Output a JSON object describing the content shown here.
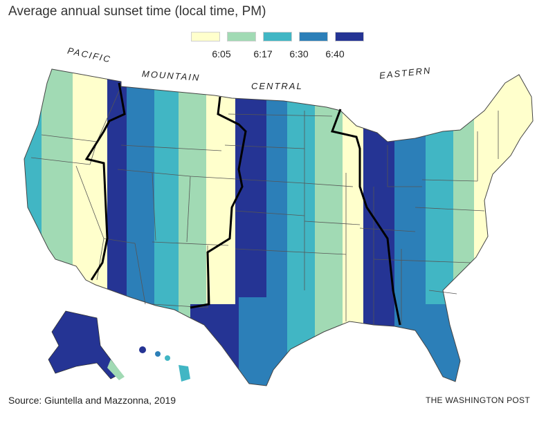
{
  "title": "Average annual sunset time (local time, PM)",
  "legend": {
    "items": [
      {
        "color": "#ffffcc",
        "label": "6:05"
      },
      {
        "color": "#a1dab4",
        "label": ""
      },
      {
        "color": "#41b6c4",
        "label": "6:17"
      },
      {
        "color": "#2c7fb8",
        "label": "6:30"
      },
      {
        "color": "#253494",
        "label": "6:40"
      }
    ]
  },
  "zones": {
    "pacific": "PACIFIC",
    "mountain": "MOUNTAIN",
    "central": "CENTRAL",
    "eastern": "EASTERN"
  },
  "source": "Source: Giuntella and Mazzonna, 2019",
  "credit": "THE WASHINGTON POST",
  "colors": {
    "lightest": "#ffffcc",
    "light": "#a1dab4",
    "mid": "#41b6c4",
    "dark": "#2c7fb8",
    "darkest": "#253494",
    "timezone_border": "#000000"
  }
}
